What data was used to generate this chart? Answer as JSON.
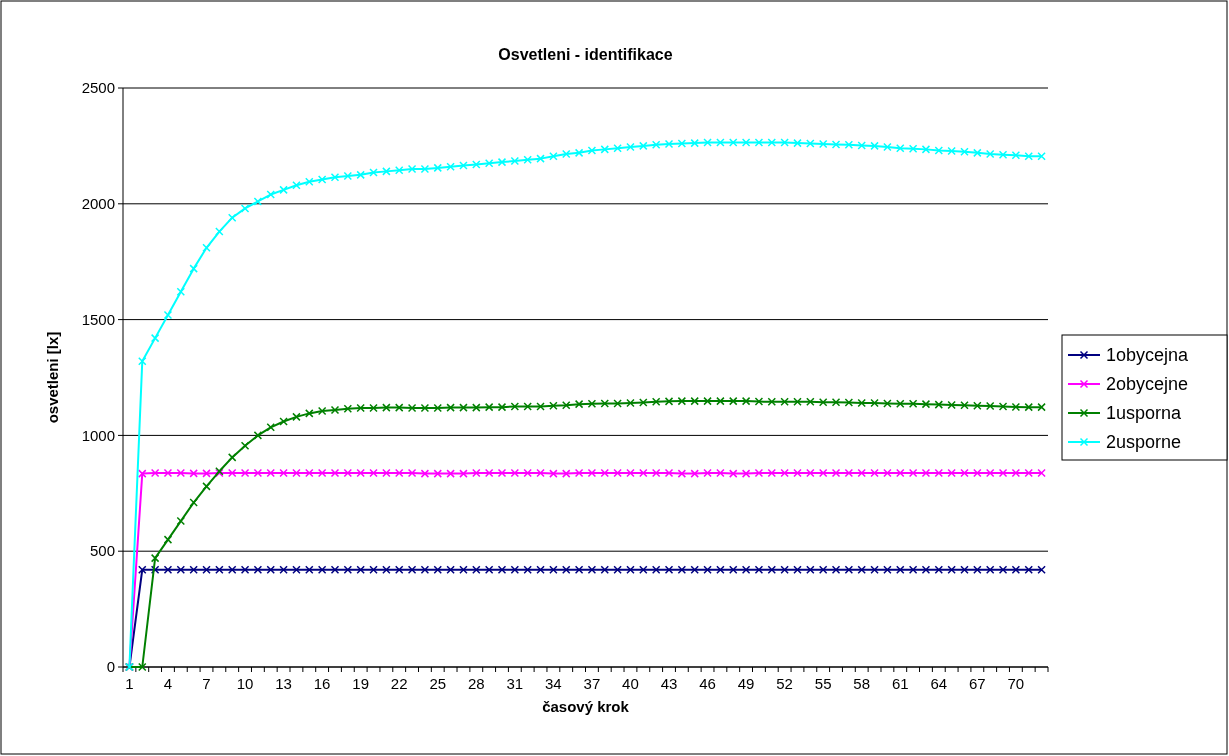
{
  "chart_data": {
    "type": "line",
    "title": "Osvetleni - identifikace",
    "xlabel": "časový krok",
    "ylabel": "osvetleni [lx]",
    "categories": [
      "1",
      null,
      null,
      "4",
      null,
      null,
      "7",
      null,
      null,
      "10",
      null,
      null,
      "13",
      null,
      null,
      "16",
      null,
      null,
      "19",
      null,
      null,
      "22",
      null,
      null,
      "25",
      null,
      null,
      "28",
      null,
      null,
      "31",
      null,
      null,
      "34",
      null,
      null,
      "37",
      null,
      null,
      "40",
      null,
      null,
      "43",
      null,
      null,
      "46",
      null,
      null,
      "49",
      null,
      null,
      "52",
      null,
      null,
      "55",
      null,
      null,
      "58",
      null,
      null,
      "61",
      null,
      null,
      "64",
      null,
      null,
      "67",
      null,
      null,
      "70",
      null,
      null
    ],
    "ylim": [
      0,
      2500
    ],
    "yticks": [
      0,
      500,
      1000,
      1500,
      2000,
      2500
    ],
    "grid": "y",
    "legend": "right",
    "marker": "cross",
    "line_style": "solid",
    "series": [
      {
        "name": "1obycejna",
        "color": "#000080",
        "values": [
          0,
          420,
          420,
          420,
          420,
          420,
          420,
          420,
          420,
          420,
          420,
          420,
          420,
          420,
          420,
          420,
          420,
          420,
          420,
          420,
          420,
          420,
          420,
          420,
          420,
          420,
          420,
          420,
          420,
          420,
          420,
          420,
          420,
          420,
          420,
          420,
          420,
          420,
          420,
          420,
          420,
          420,
          420,
          420,
          420,
          420,
          420,
          420,
          420,
          420,
          420,
          420,
          420,
          420,
          420,
          420,
          420,
          420,
          420,
          420,
          420,
          420,
          420,
          420,
          420,
          420,
          420,
          420,
          420,
          420,
          420,
          420
        ]
      },
      {
        "name": "2obycejne",
        "color": "#ff00ff",
        "values": [
          0,
          835,
          838,
          838,
          838,
          836,
          836,
          838,
          838,
          838,
          838,
          838,
          838,
          838,
          838,
          838,
          838,
          838,
          838,
          838,
          838,
          838,
          838,
          835,
          835,
          835,
          835,
          838,
          838,
          838,
          838,
          838,
          838,
          835,
          835,
          838,
          838,
          838,
          838,
          838,
          838,
          838,
          838,
          835,
          835,
          838,
          838,
          835,
          835,
          838,
          838,
          838,
          838,
          838,
          838,
          838,
          838,
          838,
          838,
          838,
          838,
          838,
          838,
          838,
          838,
          838,
          838,
          838,
          838,
          838,
          838,
          838
        ]
      },
      {
        "name": "1usporna",
        "color": "#008000",
        "values": [
          0,
          0,
          470,
          550,
          630,
          710,
          780,
          845,
          905,
          955,
          1000,
          1035,
          1060,
          1080,
          1095,
          1105,
          1110,
          1115,
          1118,
          1118,
          1120,
          1120,
          1118,
          1118,
          1118,
          1120,
          1120,
          1120,
          1122,
          1122,
          1125,
          1125,
          1125,
          1128,
          1130,
          1135,
          1137,
          1138,
          1138,
          1140,
          1142,
          1145,
          1147,
          1148,
          1148,
          1148,
          1148,
          1148,
          1148,
          1146,
          1145,
          1145,
          1145,
          1145,
          1143,
          1143,
          1142,
          1140,
          1140,
          1138,
          1137,
          1137,
          1135,
          1133,
          1131,
          1130,
          1128,
          1127,
          1125,
          1123,
          1122,
          1122
        ]
      },
      {
        "name": "2usporne",
        "color": "#00ffff",
        "values": [
          0,
          1320,
          1420,
          1520,
          1620,
          1720,
          1810,
          1880,
          1940,
          1980,
          2010,
          2040,
          2060,
          2080,
          2095,
          2105,
          2115,
          2120,
          2125,
          2135,
          2140,
          2145,
          2150,
          2150,
          2155,
          2160,
          2165,
          2170,
          2175,
          2180,
          2185,
          2190,
          2195,
          2205,
          2215,
          2220,
          2230,
          2235,
          2240,
          2245,
          2250,
          2255,
          2258,
          2260,
          2262,
          2265,
          2265,
          2265,
          2265,
          2265,
          2265,
          2265,
          2262,
          2260,
          2258,
          2256,
          2255,
          2252,
          2250,
          2245,
          2240,
          2238,
          2235,
          2230,
          2228,
          2225,
          2220,
          2215,
          2212,
          2210,
          2205,
          2205
        ]
      }
    ]
  }
}
